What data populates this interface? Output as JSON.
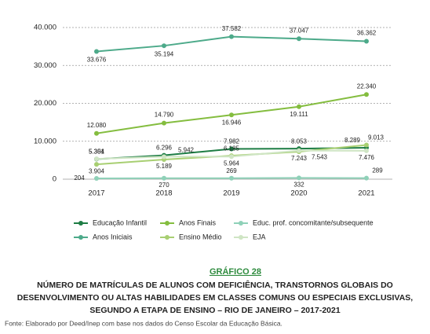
{
  "chart_data": {
    "type": "line",
    "categories": [
      "2017",
      "2018",
      "2019",
      "2020",
      "2021"
    ],
    "ylim": [
      0,
      40000
    ],
    "yticks": [
      0,
      {
        "value": 10000,
        "label": "10.000"
      },
      {
        "value": 20000,
        "label": "20.000"
      },
      {
        "value": 30000,
        "label": "30.000"
      },
      {
        "value": 40000,
        "label": "40.000"
      }
    ],
    "grid": true,
    "series": [
      {
        "name": "Educação Infantil",
        "color": "#1e7d45",
        "values": [
          5301,
          6296,
          7982,
          8053,
          8289
        ],
        "value_labels": [
          "5.301",
          "6.296",
          "7.982",
          "8.053",
          "8.289"
        ]
      },
      {
        "name": "Anos Finais",
        "color": "#84bd3f",
        "values": [
          12080,
          14790,
          16946,
          19111,
          22340
        ],
        "value_labels": [
          "12.080",
          "14.790",
          "16.946",
          "19.111",
          "22.340"
        ]
      },
      {
        "name": "Educ. prof. concomitante/subsequente",
        "color": "#8fd1b8",
        "values": [
          204,
          270,
          269,
          332,
          289
        ]
      },
      {
        "name": "Anos Iniciais",
        "color": "#4daa8a",
        "values": [
          33676,
          35194,
          37582,
          37047,
          36362
        ],
        "value_labels": [
          "33.676",
          "35.194",
          "37.582",
          "37.047",
          "36.362"
        ]
      },
      {
        "name": "Ensino Médio",
        "color": "#a8cf72",
        "values": [
          3904,
          5189,
          6185,
          7243,
          9013
        ],
        "value_labels": [
          "3.904",
          "5.189",
          "6.185",
          "7.243",
          "9.013"
        ]
      },
      {
        "name": "EJA",
        "color": "#cfe5c4",
        "values": [
          5354,
          5942,
          5964,
          7543,
          7476
        ],
        "value_labels": [
          "5.354",
          "5.942",
          "5.964",
          "7.543",
          "7.476"
        ]
      }
    ],
    "caption": "GRÁFICO 28",
    "title": [
      "NÚMERO DE MATRÍCULAS DE ALUNOS COM DEFICIÊNCIA, TRANSTORNOS GLOBAIS DO",
      "DESENVOLVIMENTO OU ALTAS HABILIDADES EM CLASSES COMUNS OU ESPECIAIS EXCLUSIVAS,",
      "SEGUNDO A ETAPA DE ENSINO – RIO DE JANEIRO – 2017-2021"
    ],
    "source": "Fonte: Elaborado por Deed/Inep com base nos dados do Censo Escolar da Educação Básica."
  }
}
